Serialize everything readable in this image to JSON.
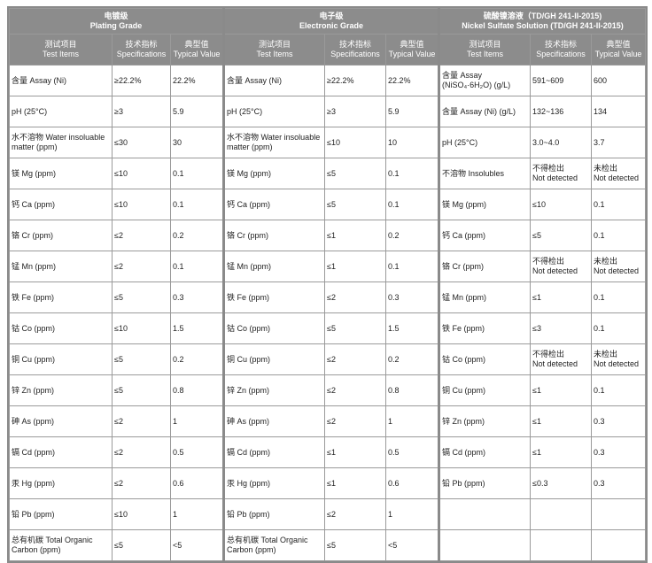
{
  "groups": [
    {
      "title_cn": "电镀级",
      "title_en": "Plating Grade"
    },
    {
      "title_cn": "电子级",
      "title_en": "Electronic Grade"
    },
    {
      "title_cn": "硫酸镍溶液（TD/GH 241-II-2015)",
      "title_en": "Nickel Sulfate Solution (TD/GH 241-II-2015)"
    }
  ],
  "subheaders": [
    {
      "cn": "测试项目",
      "en": "Test Items"
    },
    {
      "cn": "技术指标",
      "en": "Specifications"
    },
    {
      "cn": "典型值",
      "en": "Typical Value"
    }
  ],
  "plating": [
    [
      "含量 Assay (Ni)",
      "≥22.2%",
      "22.2%"
    ],
    [
      "pH (25°C)",
      "≥3",
      "5.9"
    ],
    [
      "水不溶物 Water insoluable\nmatter (ppm)",
      "≤30",
      "30"
    ],
    [
      "镁 Mg (ppm)",
      "≤10",
      "0.1"
    ],
    [
      "钙 Ca (ppm)",
      "≤10",
      "0.1"
    ],
    [
      "铬 Cr (ppm)",
      "≤2",
      "0.2"
    ],
    [
      "锰 Mn (ppm)",
      "≤2",
      "0.1"
    ],
    [
      "铁 Fe (ppm)",
      "≤5",
      "0.3"
    ],
    [
      "钴 Co (ppm)",
      "≤10",
      "1.5"
    ],
    [
      "铜 Cu (ppm)",
      "≤5",
      "0.2"
    ],
    [
      "锌 Zn (ppm)",
      "≤5",
      "0.8"
    ],
    [
      "砷 As (ppm)",
      "≤2",
      "1"
    ],
    [
      "镉 Cd (ppm)",
      "≤2",
      "0.5"
    ],
    [
      "汞 Hg (ppm)",
      "≤2",
      "0.6"
    ],
    [
      "铅 Pb (ppm)",
      "≤10",
      "1"
    ],
    [
      "总有机碳 Total Organic\nCarbon (ppm)",
      "≤5",
      "<5"
    ]
  ],
  "electronic": [
    [
      "含量 Assay (Ni)",
      "≥22.2%",
      "22.2%"
    ],
    [
      "pH (25°C)",
      "≥3",
      "5.9"
    ],
    [
      "水不溶物 Water insoluable\nmatter (ppm)",
      "≤10",
      "10"
    ],
    [
      "镁 Mg (ppm)",
      "≤5",
      "0.1"
    ],
    [
      "钙 Ca (ppm)",
      "≤5",
      "0.1"
    ],
    [
      "铬 Cr (ppm)",
      "≤1",
      "0.2"
    ],
    [
      "锰 Mn (ppm)",
      "≤1",
      "0.1"
    ],
    [
      "铁 Fe (ppm)",
      "≤2",
      "0.3"
    ],
    [
      "钴 Co (ppm)",
      "≤5",
      "1.5"
    ],
    [
      "铜 Cu (ppm)",
      "≤2",
      "0.2"
    ],
    [
      "锌 Zn (ppm)",
      "≤2",
      "0.8"
    ],
    [
      "砷 As (ppm)",
      "≤2",
      "1"
    ],
    [
      "镉 Cd (ppm)",
      "≤1",
      "0.5"
    ],
    [
      "汞 Hg (ppm)",
      "≤1",
      "0.6"
    ],
    [
      "铅 Pb (ppm)",
      "≤2",
      "1"
    ],
    [
      "总有机碳 Total Organic\nCarbon (ppm)",
      "≤5",
      "<5"
    ]
  ],
  "nickel": [
    [
      "含量 Assay\n(NiSO₄·6H₂O) (g/L)",
      "591~609",
      "600"
    ],
    [
      "含量 Assay (Ni) (g/L)",
      "132~136",
      "134"
    ],
    [
      "pH (25°C)",
      "3.0~4.0",
      "3.7"
    ],
    [
      "不溶物 Insolubles",
      "不得检出\nNot detected",
      "未检出\nNot detected"
    ],
    [
      "镁 Mg (ppm)",
      "≤10",
      "0.1"
    ],
    [
      "钙 Ca (ppm)",
      "≤5",
      "0.1"
    ],
    [
      "铬 Cr (ppm)",
      "不得检出\nNot detected",
      "未检出\nNot detected"
    ],
    [
      "锰 Mn (ppm)",
      "≤1",
      "0.1"
    ],
    [
      "铁 Fe (ppm)",
      "≤3",
      "0.1"
    ],
    [
      "钴 Co (ppm)",
      "不得检出\nNot detected",
      "未检出\nNot detected"
    ],
    [
      "铜 Cu (ppm)",
      "≤1",
      "0.1"
    ],
    [
      "锌 Zn (ppm)",
      "≤1",
      "0.3"
    ],
    [
      "镉 Cd (ppm)",
      "≤1",
      "0.3"
    ],
    [
      "铅 Pb (ppm)",
      "≤0.3",
      "0.3"
    ]
  ]
}
